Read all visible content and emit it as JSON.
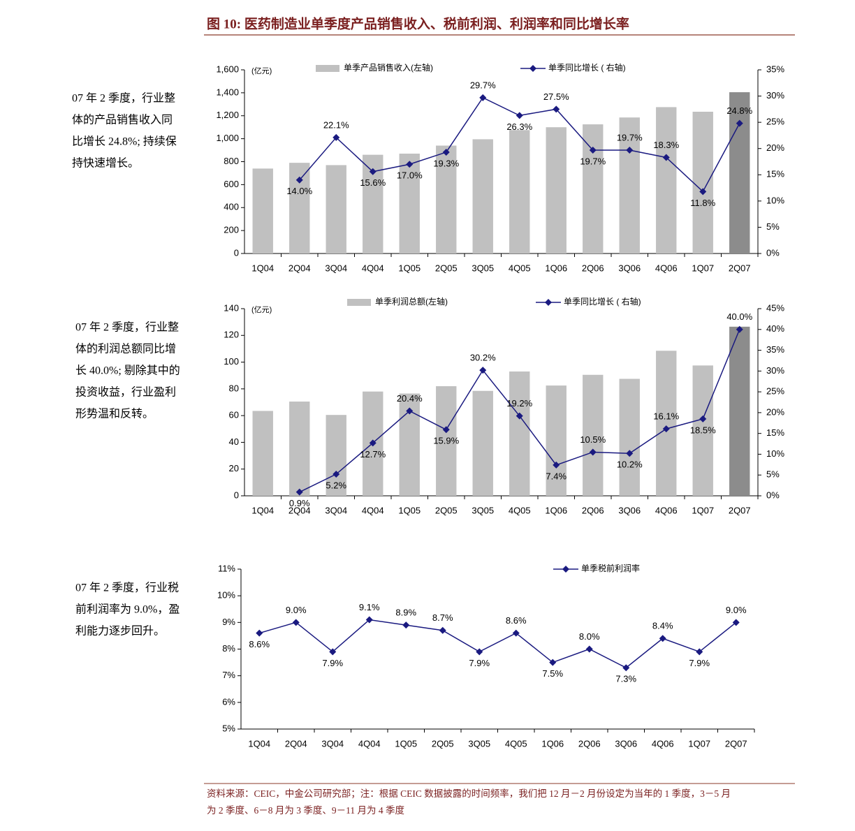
{
  "figure_title": "图 10: 医药制造业单季度产品销售收入、税前利润、利润率和同比增长率",
  "notes": [
    {
      "lines": [
        "07 年 2 季度，行业整",
        "体的产品销售收入同",
        "比增长 24.8%; 持续保",
        "持快速增长。"
      ]
    },
    {
      "lines": [
        "07 年 2 季度，行业整",
        "体的利润总额同比增",
        "长 40.0%; 剔除其中的",
        "投资收益，行业盈利",
        "形势温和反转。"
      ]
    },
    {
      "lines": [
        "07 年 2 季度，行业税",
        "前利润率为 9.0%，盈",
        "利能力逐步回升。"
      ]
    }
  ],
  "source": [
    "资料来源：CEIC，中金公司研究部；注：根据 CEIC 数据披露的时间频率，我们把 12 月－2 月份设定为当年的 1 季度，3－5 月",
    "为 2 季度、6－8 月为 3 季度、9－11 月为 4 季度"
  ],
  "chart_data": [
    {
      "type": "combo",
      "y_unit": "(亿元)",
      "categories": [
        "1Q04",
        "2Q04",
        "3Q04",
        "4Q04",
        "1Q05",
        "2Q05",
        "3Q05",
        "4Q05",
        "1Q06",
        "2Q06",
        "3Q06",
        "4Q06",
        "1Q07",
        "2Q07"
      ],
      "series": [
        {
          "name": "单季产品销售收入(左轴)",
          "type": "bar",
          "color": "#c0c0c0",
          "colors": [
            "#c0c0c0",
            "#c0c0c0",
            "#c0c0c0",
            "#c0c0c0",
            "#c0c0c0",
            "#c0c0c0",
            "#c0c0c0",
            "#c0c0c0",
            "#c0c0c0",
            "#c0c0c0",
            "#c0c0c0",
            "#c0c0c0",
            "#c0c0c0",
            "#8c8c8c"
          ],
          "values": [
            740,
            790,
            770,
            860,
            870,
            940,
            995,
            1075,
            1100,
            1125,
            1185,
            1275,
            1235,
            1405
          ]
        },
        {
          "name": "单季同比增长 ( 右轴)",
          "type": "line",
          "axis": "y2",
          "color": "#1a1a80",
          "values": [
            null,
            14.0,
            22.1,
            15.6,
            17.0,
            19.3,
            29.7,
            26.3,
            27.5,
            19.7,
            19.7,
            18.3,
            11.8,
            24.8
          ],
          "value_labels": [
            null,
            "14.0%",
            "22.1%",
            "15.6%",
            "17.0%",
            "19.3%",
            "29.7%",
            "26.3%",
            "27.5%",
            "19.7%",
            "19.7%",
            "18.3%",
            "11.8%",
            "24.8%"
          ]
        }
      ],
      "ylim": [
        0,
        1600
      ],
      "yticks": [
        0,
        200,
        400,
        600,
        800,
        {
          "value": 1000,
          "label": "1,000"
        },
        {
          "value": 1200,
          "label": "1,200"
        },
        {
          "value": 1400,
          "label": "1,400"
        },
        {
          "value": 1600,
          "label": "1,600"
        }
      ],
      "y2lim": [
        0,
        35
      ],
      "y2ticks": [
        {
          "value": 0,
          "label": "0%"
        },
        {
          "value": 5,
          "label": "5%"
        },
        {
          "value": 10,
          "label": "10%"
        },
        {
          "value": 15,
          "label": "15%"
        },
        {
          "value": 20,
          "label": "20%"
        },
        {
          "value": 25,
          "label": "25%"
        },
        {
          "value": 30,
          "label": "30%"
        },
        {
          "value": 35,
          "label": "35%"
        }
      ]
    },
    {
      "type": "combo",
      "y_unit": "(亿元)",
      "categories": [
        "1Q04",
        "2Q04",
        "3Q04",
        "4Q04",
        "1Q05",
        "2Q05",
        "3Q05",
        "4Q05",
        "1Q06",
        "2Q06",
        "3Q06",
        "4Q06",
        "1Q07",
        "2Q07"
      ],
      "series": [
        {
          "name": "单季利润总额(左轴)",
          "type": "bar",
          "color": "#c0c0c0",
          "colors": [
            "#c0c0c0",
            "#c0c0c0",
            "#c0c0c0",
            "#c0c0c0",
            "#c0c0c0",
            "#c0c0c0",
            "#c0c0c0",
            "#c0c0c0",
            "#c0c0c0",
            "#c0c0c0",
            "#c0c0c0",
            "#c0c0c0",
            "#c0c0c0",
            "#8c8c8c"
          ],
          "values": [
            63.5,
            70.5,
            60.5,
            78,
            76.5,
            82,
            78.5,
            93,
            82.5,
            90.5,
            87.5,
            108.5,
            97.5,
            126.5
          ]
        },
        {
          "name": "单季同比增长 ( 右轴)",
          "type": "line",
          "axis": "y2",
          "color": "#1a1a80",
          "values": [
            null,
            0.9,
            5.2,
            12.7,
            20.4,
            15.9,
            30.2,
            19.2,
            7.4,
            10.5,
            10.2,
            16.1,
            18.5,
            40.0
          ],
          "value_labels": [
            null,
            "0.9%",
            "5.2%",
            "12.7%",
            "20.4%",
            "15.9%",
            "30.2%",
            "19.2%",
            "7.4%",
            "10.5%",
            "10.2%",
            "16.1%",
            "18.5%",
            "40.0%"
          ]
        }
      ],
      "ylim": [
        0,
        140
      ],
      "yticks": [
        0,
        20,
        40,
        60,
        80,
        100,
        120,
        140
      ],
      "y2lim": [
        0,
        45
      ],
      "y2ticks": [
        {
          "value": 0,
          "label": "0%"
        },
        {
          "value": 5,
          "label": "5%"
        },
        {
          "value": 10,
          "label": "10%"
        },
        {
          "value": 15,
          "label": "15%"
        },
        {
          "value": 20,
          "label": "20%"
        },
        {
          "value": 25,
          "label": "25%"
        },
        {
          "value": 30,
          "label": "30%"
        },
        {
          "value": 35,
          "label": "35%"
        },
        {
          "value": 40,
          "label": "40%"
        },
        {
          "value": 45,
          "label": "45%"
        }
      ]
    },
    {
      "type": "line",
      "categories": [
        "1Q04",
        "2Q04",
        "3Q04",
        "4Q04",
        "1Q05",
        "2Q05",
        "3Q05",
        "4Q05",
        "1Q06",
        "2Q06",
        "3Q06",
        "4Q06",
        "1Q07",
        "2Q07"
      ],
      "series": [
        {
          "name": "单季税前利润率",
          "type": "line",
          "color": "#1a1a80",
          "values": [
            8.6,
            9.0,
            7.9,
            9.1,
            8.9,
            8.7,
            7.9,
            8.6,
            7.5,
            8.0,
            7.3,
            8.4,
            7.9,
            9.0
          ],
          "value_labels": [
            "8.6%",
            "9.0%",
            "7.9%",
            "9.1%",
            "8.9%",
            "8.7%",
            "7.9%",
            "8.6%",
            "7.5%",
            "8.0%",
            "7.3%",
            "8.4%",
            "7.9%",
            "9.0%"
          ]
        }
      ],
      "ylim": [
        5,
        11
      ],
      "yticks": [
        {
          "value": 5,
          "label": "5%"
        },
        {
          "value": 6,
          "label": "6%"
        },
        {
          "value": 7,
          "label": "7%"
        },
        {
          "value": 8,
          "label": "8%"
        },
        {
          "value": 9,
          "label": "9%"
        },
        {
          "value": 10,
          "label": "10%"
        },
        {
          "value": 11,
          "label": "11%"
        }
      ]
    }
  ]
}
